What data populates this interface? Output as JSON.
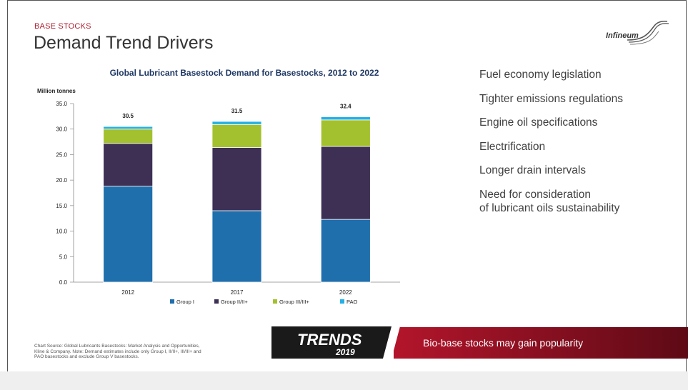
{
  "slide": {
    "kicker": "BASE STOCKS",
    "title": "Demand Trend Drivers",
    "logo": "Infineum",
    "drivers": [
      "Fuel economy legislation",
      "Tighter emissions regulations",
      "Engine oil specifications",
      "Electrification",
      "Longer drain intervals",
      "Need for consideration\nof lubricant oils sustainability"
    ],
    "source_note": "Chart Source: Global Lubricants Basestocks: Market Analysis and Opportunities, Kline & Company. Note: Demand estimates include only Group I, II/II+, III/III+ and PAO basestocks and exclude Group V basestocks.",
    "trends_badge": {
      "line1": "TRENDS",
      "line2": "2019"
    },
    "banner_text": "Bio-base stocks may gain popularity"
  },
  "colors": {
    "kicker": "#b01c2e",
    "banner_start": "#b3152b",
    "banner_end": "#6a0d18"
  },
  "chart_data": {
    "type": "bar",
    "stacked": true,
    "title": "Global Lubricant Basestock Demand for Basestocks, 2012 to 2022",
    "ylabel": "Million tonnes",
    "categories": [
      "2012",
      "2017",
      "2022"
    ],
    "ylim": [
      0,
      35
    ],
    "yticks": [
      "0.0",
      "5.0",
      "10.0",
      "15.0",
      "20.0",
      "25.0",
      "30.0",
      "35.0"
    ],
    "totals": [
      "30.5",
      "31.5",
      "32.4"
    ],
    "legend_position": "bottom",
    "series": [
      {
        "name": "Group I",
        "color": "#1f6fad",
        "values": [
          18.8,
          14.0,
          12.3
        ]
      },
      {
        "name": "Group II/II+",
        "color": "#3e2f55",
        "values": [
          8.4,
          12.4,
          14.3
        ]
      },
      {
        "name": "Group III/III+",
        "color": "#a3c12e",
        "values": [
          2.8,
          4.5,
          5.2
        ]
      },
      {
        "name": "PAO",
        "color": "#22b0e5",
        "values": [
          0.5,
          0.6,
          0.6
        ]
      }
    ]
  }
}
